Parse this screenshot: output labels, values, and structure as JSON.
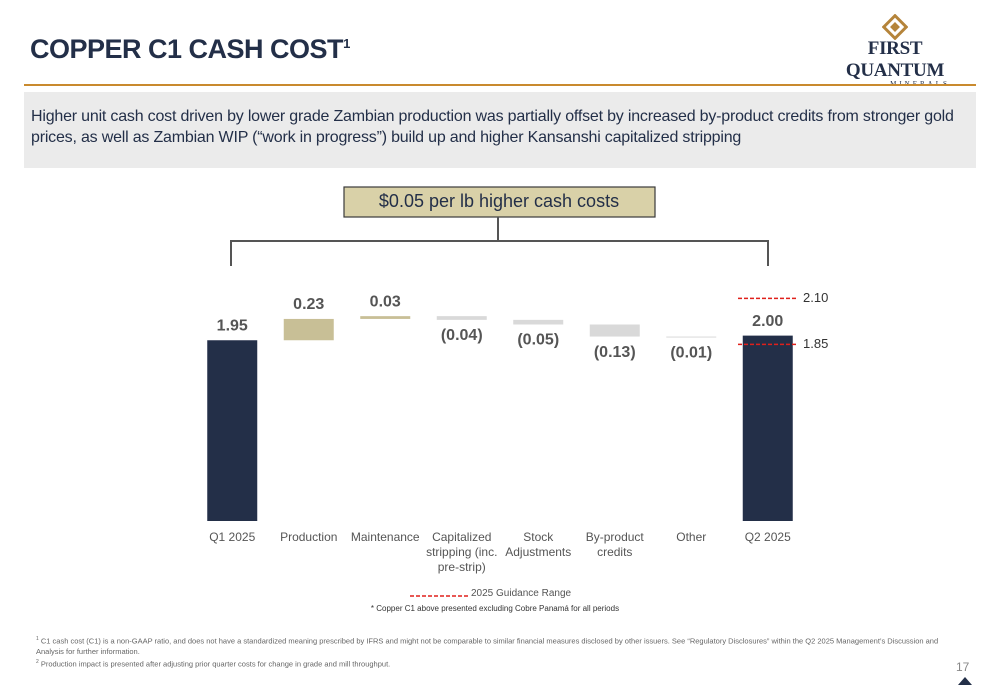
{
  "title": "COPPER C1 CASH COST",
  "title_footnote": "1",
  "logo": {
    "name": "FIRST QUANTUM",
    "subname": "MINERALS"
  },
  "summary": "Higher unit cash cost driven by lower grade Zambian production was partially offset by increased by-product credits from stronger gold prices, as well as Zambian WIP (“work in progress”) build up and higher Kansanshi capitalized stripping",
  "chart_data": {
    "type": "waterfall",
    "annotation": "$0.05 per lb higher cash costs",
    "categories": [
      "Q1 2025",
      "Production",
      "Maintenance",
      "Capitalized stripping (inc. pre-strip)",
      "Stock Adjustments",
      "By-product credits",
      "Other",
      "Q2 2025"
    ],
    "values": [
      1.95,
      0.23,
      0.03,
      -0.04,
      -0.05,
      -0.13,
      -0.01,
      2.0
    ],
    "value_labels": [
      "1.95",
      "0.23",
      "0.03",
      "(0.04)",
      "(0.05)",
      "(0.13)",
      "(0.01)",
      "2.00"
    ],
    "measure": [
      "absolute",
      "relative",
      "relative",
      "relative",
      "relative",
      "relative",
      "relative",
      "absolute"
    ],
    "colors": [
      "#232f48",
      "#c8bf96",
      "#c8bf96",
      "#d9d9d9",
      "#d9d9d9",
      "#d9d9d9",
      "#d9d9d9",
      "#232f48"
    ],
    "ylim": [
      0,
      2.6
    ],
    "y2lim": [
      0.89,
      2.2
    ],
    "guidance": {
      "name": "2025 Guidance Range",
      "axis": "y2",
      "color": "#e0201b",
      "values": [
        2.1,
        1.85
      ],
      "value_labels": [
        "2.10",
        "1.85"
      ]
    }
  },
  "note": "* Copper C1 above presented excluding Cobre Panamá for all periods",
  "footnotes": [
    {
      "marker": "1",
      "text": "C1 cash cost (C1) is a non-GAAP ratio, and does not have a standardized meaning prescribed by IFRS and might not be comparable to similar financial measures disclosed by other issuers. See “Regulatory Disclosures” within the Q2 2025 Management’s Discussion and Analysis for further information."
    },
    {
      "marker": "2",
      "text": "Production impact is presented after adjusting prior quarter costs for change in grade and mill throughput."
    }
  ],
  "page_number": "17"
}
